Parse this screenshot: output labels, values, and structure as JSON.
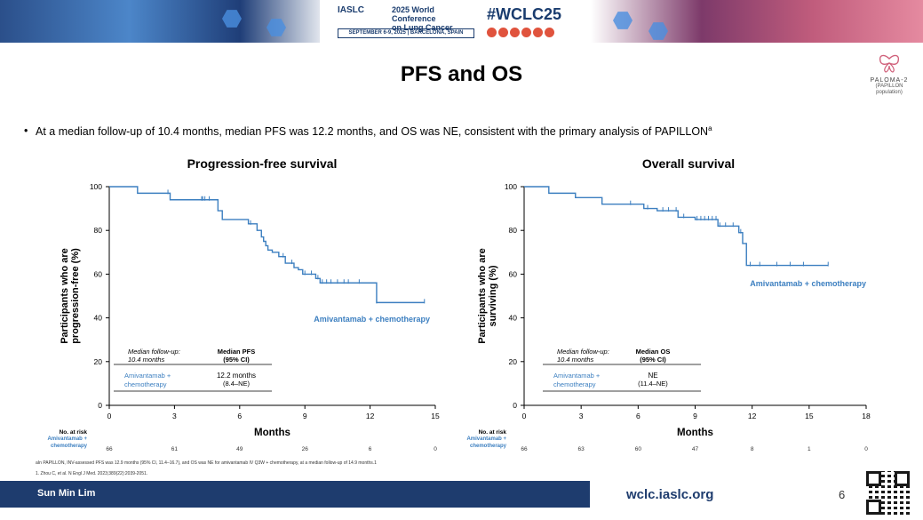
{
  "banner": {
    "org": "IASLC",
    "conference_line1": "2025 World Conference",
    "conference_line2": "on Lung Cancer",
    "dates_location": "SEPTEMBER 6-9, 2025 | BARCELONA, SPAIN",
    "hashtag": "#WCLC25"
  },
  "slide_title": "PFS and OS",
  "study_logo": {
    "name": "PALOMA-2",
    "subtitle": "(PAPILLON population)"
  },
  "bullet": {
    "text": "At a median follow-up of 10.4 months, median PFS was 12.2 months, and OS was NE, consistent with the primary analysis of PAPILLON",
    "superscript": "a"
  },
  "chart_data": [
    {
      "type": "line",
      "title": "Progression-free survival",
      "xlabel": "Months",
      "ylabel_line1": "Participants who are",
      "ylabel_line2": "progression-free (%)",
      "xlim": [
        0,
        15
      ],
      "ylim": [
        0,
        100
      ],
      "xticks": [
        0,
        3,
        6,
        9,
        12,
        15
      ],
      "yticks": [
        0,
        20,
        40,
        60,
        80,
        100
      ],
      "series": [
        {
          "name": "Amivantamab + chemotherapy",
          "color": "#3c7fc0",
          "x": [
            0,
            1.1,
            1.3,
            2.6,
            2.8,
            4.2,
            5.0,
            5.2,
            5.4,
            6.2,
            6.4,
            6.8,
            7.0,
            7.1,
            7.2,
            7.3,
            7.5,
            7.8,
            8.1,
            8.5,
            8.7,
            8.9,
            9.5,
            9.7,
            10.8,
            12.2,
            12.3,
            14.5
          ],
          "y": [
            100,
            100,
            97,
            97,
            94,
            94,
            89,
            85,
            85,
            85,
            83,
            80,
            77,
            75,
            73,
            71,
            70,
            68,
            65,
            63,
            62,
            60,
            58,
            56,
            56,
            56,
            47,
            47
          ],
          "censor_x": [
            2.7,
            4.25,
            4.3,
            4.4,
            4.6,
            6.5,
            8.0,
            8.4,
            9.0,
            9.3,
            9.6,
            9.8,
            10.0,
            10.2,
            10.5,
            10.8,
            11.0,
            11.5,
            12.3,
            14.5
          ],
          "label": "Amivantamab + chemotherapy"
        }
      ],
      "median_box": {
        "follow_up_label": "Median follow-up:",
        "follow_up_value": "10.4 months",
        "col_header_1": "Median PFS",
        "col_header_2": "(95% CI)",
        "row_label_1": "Amivantamab +",
        "row_label_2": "chemotherapy",
        "row_value_1": "12.2 months",
        "row_value_2": "(8.4–NE)"
      },
      "risk_table": {
        "title": "No. at risk",
        "row_label_1": "Amivantamab +",
        "row_label_2": "chemotherapy",
        "counts": [
          66,
          61,
          49,
          26,
          6,
          0
        ]
      }
    },
    {
      "type": "line",
      "title": "Overall survival",
      "xlabel": "Months",
      "ylabel_line1": "Participants who are",
      "ylabel_line2": "surviving (%)",
      "xlim": [
        0,
        18
      ],
      "ylim": [
        0,
        100
      ],
      "xticks": [
        0,
        3,
        6,
        9,
        12,
        15,
        18
      ],
      "yticks": [
        0,
        20,
        40,
        60,
        80,
        100
      ],
      "series": [
        {
          "name": "Amivantamab + chemotherapy",
          "color": "#3c7fc0",
          "x": [
            0,
            1.1,
            1.3,
            2.5,
            2.7,
            3.9,
            4.1,
            6.1,
            6.3,
            6.8,
            7.0,
            7.9,
            8.1,
            8.8,
            9.0,
            10.0,
            10.2,
            11.1,
            11.3,
            11.5,
            11.7,
            16.0
          ],
          "y": [
            100,
            100,
            97,
            97,
            95,
            95,
            92,
            92,
            90,
            90,
            89,
            89,
            86,
            86,
            85,
            85,
            82,
            82,
            79,
            74,
            64,
            64
          ],
          "censor_x": [
            5.6,
            6.5,
            7.3,
            7.6,
            8.0,
            8.4,
            9.1,
            9.3,
            9.5,
            9.7,
            9.9,
            10.1,
            10.3,
            10.6,
            11.0,
            11.4,
            11.9,
            12.4,
            13.3,
            14.0,
            14.7,
            16.0
          ],
          "label": "Amivantamab + chemotherapy"
        }
      ],
      "median_box": {
        "follow_up_label": "Median follow-up:",
        "follow_up_value": "10.4 months",
        "col_header_1": "Median OS",
        "col_header_2": "(95% CI)",
        "row_label_1": "Amivantamab +",
        "row_label_2": "chemotherapy",
        "row_value_1": "NE",
        "row_value_2": "(11.4–NE)"
      },
      "risk_table": {
        "title": "No. at risk",
        "row_label_1": "Amivantamab +",
        "row_label_2": "chemotherapy",
        "counts": [
          66,
          63,
          60,
          47,
          8,
          1,
          0
        ]
      }
    }
  ],
  "footnote_a": "aIn PAPILLON, INV-assessed PFS was 12.9 months (95% CI, 11.4–16.7), and OS was NE for amivantamab IV Q3W + chemotherapy, at a median follow-up of 14.9 months.1",
  "footnote_ref": "1. Zhou C, et al. N Engl J Med. 2023;389(22):2039-2051.",
  "footer": {
    "presenter": "Sun Min Lim",
    "website": "wclc.iaslc.org",
    "page": "6"
  }
}
